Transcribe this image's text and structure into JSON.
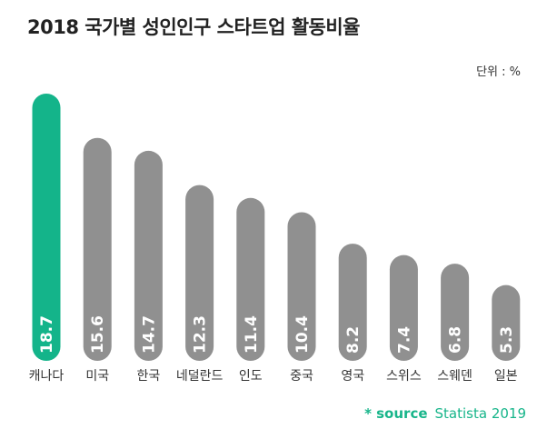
{
  "title": "2018 국가별 성인인구 스타트업 활동비율",
  "unit_label": "단위 : %",
  "source": {
    "label": "* source",
    "value": "Statista 2019"
  },
  "colors": {
    "highlight": "#14b48a",
    "default": "#909090",
    "value_text": "#ffffff",
    "category_text": "#333333"
  },
  "chart_data": {
    "type": "bar",
    "title": "2018 국가별 성인인구 스타트업 활동비율",
    "unit": "단위 : %",
    "categories": [
      "캐나다",
      "미국",
      "한국",
      "네덜란드",
      "인도",
      "중국",
      "영국",
      "스위스",
      "스웨덴",
      "일본"
    ],
    "values": [
      18.7,
      15.6,
      14.7,
      12.3,
      11.4,
      10.4,
      8.2,
      7.4,
      6.8,
      5.3
    ],
    "value_labels": [
      "18.7",
      "15.6",
      "14.7",
      "12.3",
      "11.4",
      "10.4",
      "8.2",
      "7.4",
      "6.8",
      "5.3"
    ],
    "highlight_index": 0,
    "ylim": [
      0,
      18.7
    ],
    "grid": false,
    "legend": "none"
  }
}
